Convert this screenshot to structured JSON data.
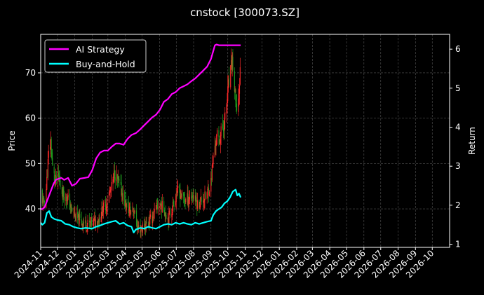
{
  "chart_data": {
    "type": "line",
    "title": "cnstock [300073.SZ]",
    "ylabel": "Price",
    "y2label": "Return",
    "legend_position": "top-left",
    "grid": true,
    "background": "#000000",
    "xlim": [
      "2024-11-01",
      "2026-11-01"
    ],
    "ylim": [
      31.5,
      78.5
    ],
    "y2lim": [
      0.92,
      6.38
    ],
    "x_ticks": [
      "2024-11",
      "2024-12",
      "2025-01",
      "2025-02",
      "2025-03",
      "2025-04",
      "2025-05",
      "2025-06",
      "2025-07",
      "2025-08",
      "2025-09",
      "2025-10",
      "2025-11",
      "2025-12",
      "2026-01",
      "2026-02",
      "2026-03",
      "2026-04",
      "2026-05",
      "2026-06",
      "2026-07",
      "2026-08",
      "2026-09",
      "2026-10"
    ],
    "y_ticks": [
      40,
      50,
      60,
      70
    ],
    "y2_ticks": [
      1,
      2,
      3,
      4,
      5,
      6
    ],
    "colors": {
      "up": "#ff2a2a",
      "down": "#1f9e1f",
      "strategy": "#ff00ff",
      "buyhold": "#00ffff"
    },
    "price_path": {
      "x": [
        "2024-11-01",
        "2024-11-06",
        "2024-11-11",
        "2024-11-15",
        "2024-11-19",
        "2024-11-22",
        "2024-11-27",
        "2024-12-03",
        "2024-12-08",
        "2024-12-14",
        "2024-12-20",
        "2024-12-27",
        "2025-01-03",
        "2025-01-09",
        "2025-01-15",
        "2025-01-22",
        "2025-02-01",
        "2025-02-08",
        "2025-02-14",
        "2025-02-20",
        "2025-02-26",
        "2025-03-03",
        "2025-03-08",
        "2025-03-13",
        "2025-03-19",
        "2025-03-25",
        "2025-04-01",
        "2025-04-06",
        "2025-04-10",
        "2025-04-16",
        "2025-04-22",
        "2025-04-28",
        "2025-05-05",
        "2025-05-12",
        "2025-05-19",
        "2025-05-26",
        "2025-06-02",
        "2025-06-09",
        "2025-06-16",
        "2025-06-22",
        "2025-06-28",
        "2025-07-04",
        "2025-07-10",
        "2025-07-17",
        "2025-07-24",
        "2025-08-01",
        "2025-08-08",
        "2025-08-15",
        "2025-08-22",
        "2025-08-27",
        "2025-09-01",
        "2025-09-04",
        "2025-09-08",
        "2025-09-12",
        "2025-09-16",
        "2025-09-19",
        "2025-09-23",
        "2025-09-26",
        "2025-09-29",
        "2025-10-02",
        "2025-10-06",
        "2025-10-09",
        "2025-10-13",
        "2025-10-16",
        "2025-10-20",
        "2025-10-23"
      ],
      "y": [
        43.5,
        41,
        44.5,
        52,
        55,
        49,
        46,
        47,
        44,
        43,
        42,
        39.5,
        38,
        37.5,
        37,
        36.5,
        37,
        37.5,
        38,
        40,
        41,
        43,
        45,
        48,
        46,
        44,
        41,
        40,
        39.5,
        40,
        36,
        35.5,
        36,
        37,
        38,
        40,
        41,
        40,
        38,
        39.5,
        42,
        44,
        43,
        42,
        42.5,
        43,
        41,
        42,
        42.5,
        44,
        46,
        50,
        54,
        56,
        55,
        57,
        58,
        60,
        63,
        67,
        70,
        73,
        66,
        62,
        64,
        70
      ]
    },
    "series": [
      {
        "name": "AI Strategy",
        "x": [
          "2024-11-01",
          "2024-11-04",
          "2024-11-08",
          "2024-11-12",
          "2024-11-16",
          "2024-11-20",
          "2024-11-24",
          "2024-11-28",
          "2024-12-03",
          "2024-12-08",
          "2024-12-13",
          "2024-12-20",
          "2024-12-27",
          "2025-01-03",
          "2025-01-10",
          "2025-01-18",
          "2025-01-25",
          "2025-02-01",
          "2025-02-08",
          "2025-02-15",
          "2025-02-22",
          "2025-03-01",
          "2025-03-08",
          "2025-03-15",
          "2025-03-22",
          "2025-03-29",
          "2025-04-05",
          "2025-04-12",
          "2025-04-20",
          "2025-04-28",
          "2025-05-05",
          "2025-05-12",
          "2025-05-19",
          "2025-05-26",
          "2025-06-02",
          "2025-06-09",
          "2025-06-16",
          "2025-06-23",
          "2025-06-30",
          "2025-07-07",
          "2025-07-14",
          "2025-07-21",
          "2025-07-28",
          "2025-08-04",
          "2025-08-11",
          "2025-08-18",
          "2025-08-25",
          "2025-09-01",
          "2025-09-05",
          "2025-09-08",
          "2025-09-11",
          "2025-09-15",
          "2025-09-20",
          "2025-09-30",
          "2025-10-10",
          "2025-10-20",
          "2025-10-24"
        ],
        "y": [
          1.9,
          1.9,
          1.95,
          2.1,
          2.25,
          2.4,
          2.55,
          2.65,
          2.68,
          2.7,
          2.65,
          2.7,
          2.5,
          2.55,
          2.68,
          2.7,
          2.72,
          2.9,
          3.2,
          3.35,
          3.4,
          3.4,
          3.5,
          3.58,
          3.58,
          3.55,
          3.7,
          3.8,
          3.85,
          3.95,
          4.05,
          4.15,
          4.25,
          4.32,
          4.45,
          4.65,
          4.72,
          4.85,
          4.9,
          5.0,
          5.05,
          5.1,
          5.18,
          5.25,
          5.35,
          5.45,
          5.55,
          5.75,
          5.95,
          6.1,
          6.12,
          6.1,
          6.1,
          6.1,
          6.1,
          6.1,
          6.1
        ]
      },
      {
        "name": "Buy-and-Hold",
        "x": [
          "2024-11-01",
          "2024-11-04",
          "2024-11-08",
          "2024-11-12",
          "2024-11-16",
          "2024-11-20",
          "2024-11-25",
          "2024-12-01",
          "2024-12-08",
          "2024-12-15",
          "2024-12-22",
          "2024-12-29",
          "2025-01-05",
          "2025-01-12",
          "2025-01-20",
          "2025-02-01",
          "2025-02-08",
          "2025-02-15",
          "2025-02-22",
          "2025-03-01",
          "2025-03-08",
          "2025-03-15",
          "2025-03-22",
          "2025-03-29",
          "2025-04-05",
          "2025-04-12",
          "2025-04-16",
          "2025-04-20",
          "2025-04-28",
          "2025-05-05",
          "2025-05-12",
          "2025-05-19",
          "2025-05-26",
          "2025-06-02",
          "2025-06-09",
          "2025-06-16",
          "2025-06-23",
          "2025-06-30",
          "2025-07-07",
          "2025-07-14",
          "2025-07-21",
          "2025-07-28",
          "2025-08-04",
          "2025-08-11",
          "2025-08-18",
          "2025-08-25",
          "2025-09-01",
          "2025-09-05",
          "2025-09-10",
          "2025-09-15",
          "2025-09-20",
          "2025-09-25",
          "2025-09-30",
          "2025-10-05",
          "2025-10-10",
          "2025-10-15",
          "2025-10-18",
          "2025-10-21",
          "2025-10-24"
        ],
        "y": [
          1.55,
          1.5,
          1.55,
          1.8,
          1.85,
          1.7,
          1.65,
          1.62,
          1.6,
          1.52,
          1.5,
          1.45,
          1.42,
          1.4,
          1.42,
          1.4,
          1.45,
          1.48,
          1.52,
          1.55,
          1.58,
          1.6,
          1.52,
          1.55,
          1.48,
          1.45,
          1.3,
          1.38,
          1.42,
          1.4,
          1.45,
          1.42,
          1.4,
          1.45,
          1.5,
          1.52,
          1.5,
          1.55,
          1.52,
          1.55,
          1.52,
          1.5,
          1.55,
          1.52,
          1.55,
          1.58,
          1.6,
          1.75,
          1.85,
          1.9,
          1.95,
          2.05,
          2.1,
          2.2,
          2.35,
          2.4,
          2.25,
          2.3,
          2.2
        ]
      }
    ]
  }
}
